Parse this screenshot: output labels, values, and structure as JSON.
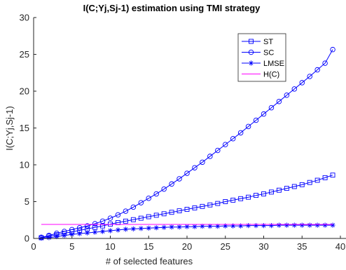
{
  "chart_data": {
    "type": "line",
    "title": "I(C;Yj,Sj-1) estimation using TMI strategy",
    "xlabel": "# of selected features",
    "ylabel": "I(C;Yj,Sj-1)",
    "xlim": [
      0,
      40
    ],
    "ylim": [
      0,
      30
    ],
    "xticks": [
      "0",
      "5",
      "10",
      "15",
      "20",
      "25",
      "30",
      "35",
      "40"
    ],
    "yticks": [
      "0",
      "5",
      "10",
      "15",
      "20",
      "25",
      "30"
    ],
    "grid": false,
    "legend_position": "top-right",
    "x": [
      1,
      2,
      3,
      4,
      5,
      6,
      7,
      8,
      9,
      10,
      11,
      12,
      13,
      14,
      15,
      16,
      17,
      18,
      19,
      20,
      21,
      22,
      23,
      24,
      25,
      26,
      27,
      28,
      29,
      30,
      31,
      32,
      33,
      34,
      35,
      36,
      37,
      38,
      39
    ],
    "series": [
      {
        "name": "ST",
        "marker": "square",
        "color": "#0000FF",
        "values": [
          0.1,
          0.3,
          0.5,
          0.7,
          0.9,
          1.1,
          1.3,
          1.5,
          1.7,
          1.95,
          2.15,
          2.35,
          2.55,
          2.75,
          2.95,
          3.15,
          3.35,
          3.55,
          3.75,
          3.95,
          4.15,
          4.35,
          4.55,
          4.75,
          5.0,
          5.2,
          5.4,
          5.6,
          5.85,
          6.05,
          6.3,
          6.55,
          6.8,
          7.05,
          7.3,
          7.6,
          7.9,
          8.25,
          8.6
        ]
      },
      {
        "name": "SC",
        "marker": "circle",
        "color": "#0000FF",
        "values": [
          0.15,
          0.4,
          0.7,
          0.95,
          1.2,
          1.45,
          1.7,
          2.0,
          2.35,
          2.75,
          3.2,
          3.7,
          4.25,
          4.85,
          5.45,
          6.05,
          6.7,
          7.4,
          8.1,
          8.85,
          9.6,
          10.35,
          11.15,
          11.95,
          12.75,
          13.55,
          14.35,
          15.2,
          16.05,
          16.9,
          17.75,
          18.6,
          19.45,
          20.3,
          21.15,
          22.0,
          22.9,
          23.8,
          25.65
        ]
      },
      {
        "name": "LMSE",
        "marker": "asterisk",
        "color": "#0000FF",
        "values": [
          0.05,
          0.1,
          0.25,
          0.4,
          0.55,
          0.65,
          0.75,
          0.85,
          0.95,
          1.05,
          1.15,
          1.25,
          1.3,
          1.35,
          1.4,
          1.45,
          1.5,
          1.55,
          1.55,
          1.6,
          1.6,
          1.65,
          1.65,
          1.65,
          1.7,
          1.7,
          1.7,
          1.75,
          1.75,
          1.75,
          1.75,
          1.8,
          1.8,
          1.8,
          1.8,
          1.8,
          1.8,
          1.8,
          1.8
        ]
      },
      {
        "name": "H(C)",
        "marker": "none",
        "color": "#FF00FF",
        "x": [
          1,
          39
        ],
        "values": [
          1.9,
          1.9
        ]
      }
    ]
  }
}
